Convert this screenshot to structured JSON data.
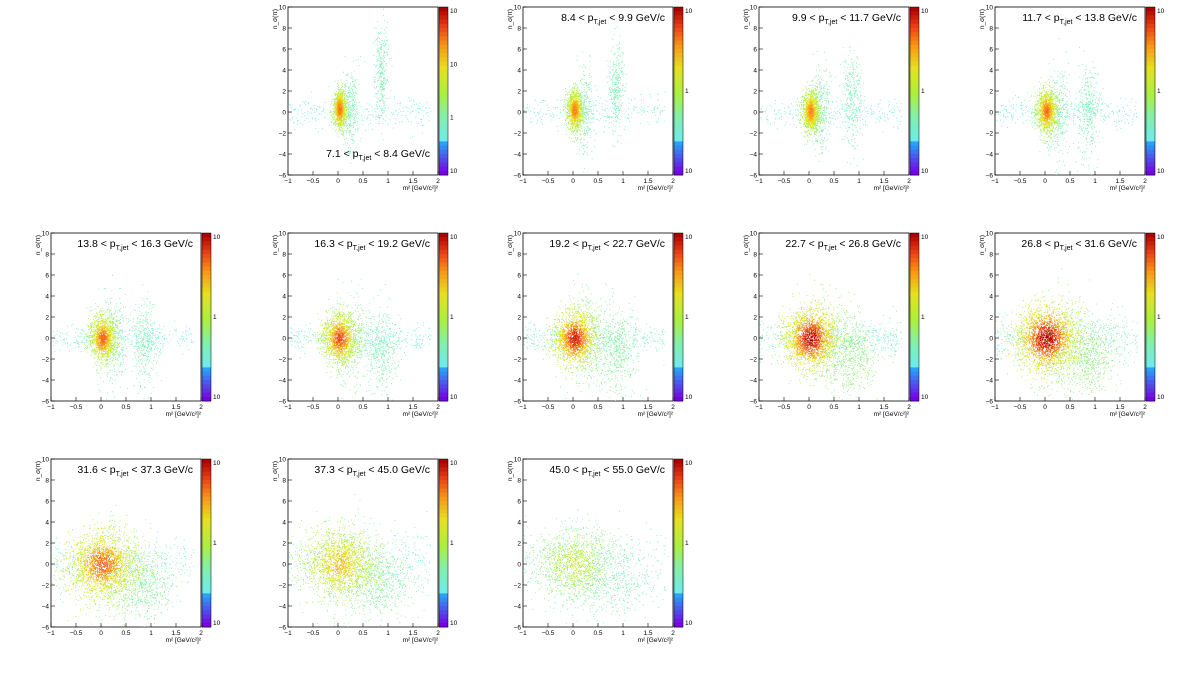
{
  "chart_data": {
    "type": "heatmap",
    "x_axis": {
      "label": "m² [GeV/c²]²",
      "range": [
        -1,
        2
      ],
      "ticks": [
        -1,
        -0.5,
        0,
        0.5,
        1,
        1.5,
        2
      ],
      "tick_labels": [
        "−1",
        "−0.5",
        "0",
        "0.5",
        "1",
        "1.5",
        "2"
      ]
    },
    "y_axis": {
      "label": "n_σ(π)",
      "range": [
        -6,
        10
      ],
      "ticks": [
        -6,
        -4,
        -2,
        0,
        2,
        4,
        6,
        8,
        10
      ],
      "tick_labels": [
        "−6",
        "−4",
        "−2",
        "0",
        "2",
        "4",
        "6",
        "8",
        "10"
      ]
    },
    "z_axis": {
      "log_scale": true,
      "palette": "rainbow"
    },
    "grid": false,
    "panels": [
      {
        "title_pre": "7.1 < p",
        "title_sub": "T,jet",
        "title_post": " < 8.4 GeV/c",
        "title_pos": "bottom",
        "colorbar_labels": [
          "10",
          "10",
          "1",
          "10"
        ],
        "density": 0.25,
        "spread": 0.0,
        "pion": {
          "m2": 0.03,
          "nsig": 0.3
        },
        "kaon": {
          "m2": 0.24,
          "nsig": 0.5
        },
        "proton": {
          "m2": 0.86,
          "nsig": 4.0
        }
      },
      {
        "title_pre": "8.4 < p",
        "title_sub": "T,jet",
        "title_post": " < 9.9 GeV/c",
        "title_pos": "top",
        "colorbar_labels": [
          "10",
          "1",
          "10"
        ],
        "density": 0.25,
        "spread": 0.05,
        "pion": {
          "m2": 0.03,
          "nsig": 0.2
        },
        "kaon": {
          "m2": 0.24,
          "nsig": 0.3
        },
        "proton": {
          "m2": 0.86,
          "nsig": 2.6
        }
      },
      {
        "title_pre": "9.9 < p",
        "title_sub": "T,jet",
        "title_post": " < 11.7 GeV/c",
        "title_pos": "top",
        "colorbar_labels": [
          "10",
          "1",
          "10"
        ],
        "density": 0.25,
        "spread": 0.1,
        "pion": {
          "m2": 0.03,
          "nsig": 0.1
        },
        "kaon": {
          "m2": 0.24,
          "nsig": 0.2
        },
        "proton": {
          "m2": 0.86,
          "nsig": 1.2
        }
      },
      {
        "title_pre": "11.7 < p",
        "title_sub": "T,jet",
        "title_post": " < 13.8 GeV/c",
        "title_pos": "top",
        "colorbar_labels": [
          "10",
          "1",
          "10"
        ],
        "density": 0.3,
        "spread": 0.15,
        "pion": {
          "m2": 0.03,
          "nsig": 0.1
        },
        "kaon": {
          "m2": 0.24,
          "nsig": 0.0
        },
        "proton": {
          "m2": 0.86,
          "nsig": 0.2
        }
      },
      {
        "title_pre": "13.8 < p",
        "title_sub": "T,jet",
        "title_post": " < 16.3 GeV/c",
        "title_pos": "top",
        "colorbar_labels": [
          "10",
          "1",
          "10"
        ],
        "density": 0.35,
        "spread": 0.25,
        "pion": {
          "m2": 0.03,
          "nsig": 0.0
        },
        "kaon": {
          "m2": 0.24,
          "nsig": -0.2
        },
        "proton": {
          "m2": 0.86,
          "nsig": -0.5
        }
      },
      {
        "title_pre": "16.3 < p",
        "title_sub": "T,jet",
        "title_post": " < 19.2 GeV/c",
        "title_pos": "top",
        "colorbar_labels": [
          "10",
          "1",
          "10"
        ],
        "density": 0.45,
        "spread": 0.4,
        "pion": {
          "m2": 0.03,
          "nsig": 0.0
        },
        "kaon": {
          "m2": 0.24,
          "nsig": -0.3
        },
        "proton": {
          "m2": 0.86,
          "nsig": -1.0
        }
      },
      {
        "title_pre": "19.2 < p",
        "title_sub": "T,jet",
        "title_post": " < 22.7 GeV/c",
        "title_pos": "top",
        "colorbar_labels": [
          "10",
          "1",
          "10"
        ],
        "density": 0.6,
        "spread": 0.55,
        "pion": {
          "m2": 0.03,
          "nsig": 0.0
        },
        "kaon": {
          "m2": 0.24,
          "nsig": -0.4
        },
        "proton": {
          "m2": 0.86,
          "nsig": -1.3
        }
      },
      {
        "title_pre": "22.7 < p",
        "title_sub": "T,jet",
        "title_post": " < 26.8 GeV/c",
        "title_pos": "top",
        "colorbar_labels": [
          "10",
          "1",
          "10"
        ],
        "density": 0.75,
        "spread": 0.7,
        "pion": {
          "m2": 0.03,
          "nsig": 0.0
        },
        "kaon": {
          "m2": 0.24,
          "nsig": -0.5
        },
        "proton": {
          "m2": 0.86,
          "nsig": -1.6
        }
      },
      {
        "title_pre": "26.8 < p",
        "title_sub": "T,jet",
        "title_post": " < 31.6 GeV/c",
        "title_pos": "top",
        "colorbar_labels": [
          "10",
          "1",
          "10"
        ],
        "density": 0.85,
        "spread": 0.85,
        "pion": {
          "m2": 0.03,
          "nsig": 0.0
        },
        "kaon": {
          "m2": 0.24,
          "nsig": -0.5
        },
        "proton": {
          "m2": 0.86,
          "nsig": -1.8
        }
      },
      {
        "title_pre": "31.6 < p",
        "title_sub": "T,jet",
        "title_post": " < 37.3 GeV/c",
        "title_pos": "top",
        "colorbar_labels": [
          "10",
          "1",
          "10"
        ],
        "density": 0.7,
        "spread": 1.0,
        "pion": {
          "m2": 0.03,
          "nsig": 0.0
        },
        "kaon": {
          "m2": 0.24,
          "nsig": -0.5
        },
        "proton": {
          "m2": 0.86,
          "nsig": -1.9
        }
      },
      {
        "title_pre": "37.3 < p",
        "title_sub": "T,jet",
        "title_post": " < 45.0 GeV/c",
        "title_pos": "top",
        "colorbar_labels": [
          "10",
          "1",
          "10"
        ],
        "density": 0.5,
        "spread": 1.1,
        "pion": {
          "m2": 0.03,
          "nsig": 0.0
        },
        "kaon": {
          "m2": 0.24,
          "nsig": -0.5
        },
        "proton": {
          "m2": 0.86,
          "nsig": -2.0
        }
      },
      {
        "title_pre": "45.0 < p",
        "title_sub": "T,jet",
        "title_post": " < 55.0 GeV/c",
        "title_pos": "top",
        "colorbar_labels": [
          "10",
          "1",
          "10"
        ],
        "density": 0.22,
        "spread": 1.2,
        "pion": {
          "m2": 0.03,
          "nsig": 0.0
        },
        "kaon": {
          "m2": 0.24,
          "nsig": -0.5
        },
        "proton": {
          "m2": 0.86,
          "nsig": -2.0
        }
      }
    ]
  }
}
